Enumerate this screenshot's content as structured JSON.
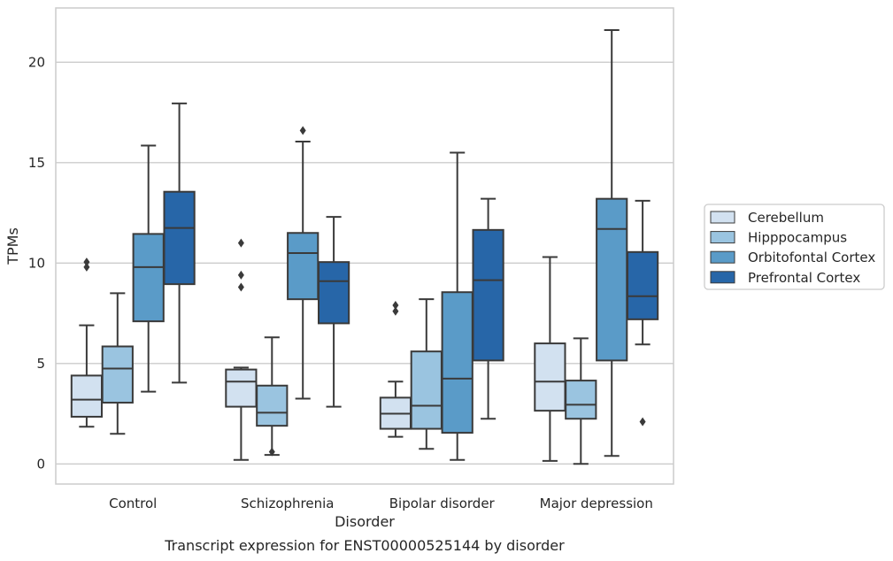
{
  "chart_data": {
    "type": "box",
    "title": "",
    "caption": "Transcript expression for ENST00000525144 by disorder",
    "xlabel": "Disorder",
    "ylabel": "TPMs",
    "ylim": [
      -1,
      22.7
    ],
    "yticks": [
      0,
      5,
      10,
      15,
      20
    ],
    "grid": "horizontal",
    "legend_position": "right",
    "categories": [
      "Control",
      "Schizophrenia",
      "Bipolar disorder",
      "Major depression"
    ],
    "series": [
      {
        "name": "Cerebellum",
        "color": "#d2e1f0",
        "boxes": [
          {
            "whisker_low": 1.85,
            "q1": 2.35,
            "median": 3.2,
            "q3": 4.4,
            "whisker_high": 6.9,
            "outliers": [
              9.8,
              10.05
            ]
          },
          {
            "whisker_low": 0.2,
            "q1": 2.85,
            "median": 4.1,
            "q3": 4.7,
            "whisker_high": 4.8,
            "outliers": [
              8.8,
              9.4,
              11.0
            ]
          },
          {
            "whisker_low": 1.35,
            "q1": 1.75,
            "median": 2.5,
            "q3": 3.3,
            "whisker_high": 4.1,
            "outliers": [
              7.6,
              7.9
            ]
          },
          {
            "whisker_low": 0.15,
            "q1": 2.65,
            "median": 4.1,
            "q3": 6.0,
            "whisker_high": 10.3,
            "outliers": []
          }
        ]
      },
      {
        "name": "Hipppocampus",
        "color": "#9ac4e0",
        "boxes": [
          {
            "whisker_low": 1.5,
            "q1": 3.05,
            "median": 4.75,
            "q3": 5.85,
            "whisker_high": 8.5,
            "outliers": []
          },
          {
            "whisker_low": 0.45,
            "q1": 1.9,
            "median": 2.55,
            "q3": 3.9,
            "whisker_high": 6.3,
            "outliers": [
              0.6
            ]
          },
          {
            "whisker_low": 0.75,
            "q1": 1.75,
            "median": 2.9,
            "q3": 5.6,
            "whisker_high": 8.2,
            "outliers": []
          },
          {
            "whisker_low": 0.0,
            "q1": 2.25,
            "median": 2.95,
            "q3": 4.15,
            "whisker_high": 6.25,
            "outliers": []
          }
        ]
      },
      {
        "name": "Orbitofontal Cortex",
        "color": "#5a9bc8",
        "boxes": [
          {
            "whisker_low": 3.6,
            "q1": 7.1,
            "median": 9.8,
            "q3": 11.45,
            "whisker_high": 15.85,
            "outliers": []
          },
          {
            "whisker_low": 3.25,
            "q1": 8.2,
            "median": 10.5,
            "q3": 11.5,
            "whisker_high": 16.05,
            "outliers": [
              16.6
            ]
          },
          {
            "whisker_low": 0.2,
            "q1": 1.55,
            "median": 4.25,
            "q3": 8.55,
            "whisker_high": 15.5,
            "outliers": []
          },
          {
            "whisker_low": 0.4,
            "q1": 5.15,
            "median": 11.7,
            "q3": 13.2,
            "whisker_high": 21.6,
            "outliers": []
          }
        ]
      },
      {
        "name": "Prefrontal Cortex",
        "color": "#2766a8",
        "boxes": [
          {
            "whisker_low": 4.05,
            "q1": 8.95,
            "median": 11.75,
            "q3": 13.55,
            "whisker_high": 17.95,
            "outliers": []
          },
          {
            "whisker_low": 2.85,
            "q1": 7.0,
            "median": 9.1,
            "q3": 10.05,
            "whisker_high": 12.3,
            "outliers": []
          },
          {
            "whisker_low": 2.25,
            "q1": 5.15,
            "median": 9.15,
            "q3": 11.65,
            "whisker_high": 13.2,
            "outliers": []
          },
          {
            "whisker_low": 5.95,
            "q1": 7.2,
            "median": 8.35,
            "q3": 10.55,
            "whisker_high": 13.1,
            "outliers": [
              2.1
            ]
          }
        ]
      }
    ]
  }
}
